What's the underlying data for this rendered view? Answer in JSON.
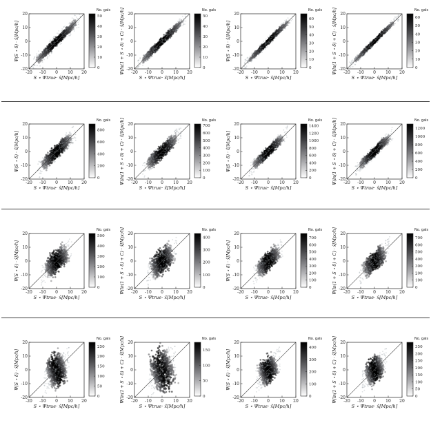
{
  "figure": {
    "colorbar_title": "No. gals",
    "xlabel_html": "S ⋆ Ψ<sub>true</sub>· x̂[Mpc/h]",
    "tick_values": [
      -20,
      -10,
      0,
      10,
      20
    ]
  },
  "chart_data": [
    {
      "type": "heatmap",
      "row": 1,
      "col": 1,
      "ylabel": "Ψ(S ⋆ δ) · x̂[Mpc/h]",
      "xlabel": "S ⋆ Ψtrue· x̂[Mpc/h]",
      "xlim": [
        -20,
        20
      ],
      "ylim": [
        -20,
        20
      ],
      "colorbar_title": "No. gals",
      "colorbar_ticks": [
        0,
        10,
        20,
        30,
        40,
        50
      ],
      "colorbar_max": 52,
      "spread": 0.9,
      "extent": 15,
      "halo": 2.4
    },
    {
      "type": "heatmap",
      "row": 1,
      "col": 2,
      "ylabel": "Ψ(ln(1 + S ⋆ δ) + C) · x̂[Mpc/h]",
      "xlabel": "S ⋆ Ψtrue· x̂[Mpc/h]",
      "xlim": [
        -20,
        20
      ],
      "ylim": [
        -20,
        20
      ],
      "colorbar_title": "No. gals",
      "colorbar_ticks": [
        0,
        10,
        20,
        30,
        40,
        50
      ],
      "colorbar_max": 52,
      "spread": 0.85,
      "extent": 15,
      "halo": 1.6
    },
    {
      "type": "heatmap",
      "row": 1,
      "col": 3,
      "ylabel": "Ψ(S ⋆ δ) · x̂[Mpc/h]",
      "xlabel": "S ⋆ Ψtrue· x̂[Mpc/h]",
      "xlim": [
        -20,
        20
      ],
      "ylim": [
        -20,
        20
      ],
      "colorbar_title": "No. gals",
      "colorbar_ticks": [
        0,
        10,
        20,
        30,
        40,
        50,
        60
      ],
      "colorbar_max": 66,
      "spread": 0.6,
      "extent": 15,
      "halo": 1.4
    },
    {
      "type": "heatmap",
      "row": 1,
      "col": 4,
      "ylabel": "Ψ(ln(1 + S ⋆ δ) + C) · x̂[Mpc/h]",
      "xlabel": "S ⋆ Ψtrue· x̂[Mpc/h]",
      "xlim": [
        -20,
        20
      ],
      "ylim": [
        -20,
        20
      ],
      "colorbar_title": "No. gals",
      "colorbar_ticks": [
        0,
        10,
        20,
        30,
        40,
        50,
        60
      ],
      "colorbar_max": 64,
      "spread": 0.5,
      "extent": 15,
      "halo": 1.2
    },
    {
      "type": "heatmap",
      "row": 2,
      "col": 1,
      "ylabel": "Ψ(S ⋆ δ) · x̂[Mpc/h]",
      "xlabel": "S ⋆ Ψtrue· x̂[Mpc/h]",
      "xlim": [
        -20,
        20
      ],
      "ylim": [
        -20,
        20
      ],
      "colorbar_title": "No. gals",
      "colorbar_ticks": [
        0,
        200,
        400,
        600,
        800
      ],
      "colorbar_max": 900,
      "spread": 1.5,
      "extent": 11,
      "halo": 2.6
    },
    {
      "type": "heatmap",
      "row": 2,
      "col": 2,
      "ylabel": "Ψ(ln(1 + S ⋆ δ) + C) · x̂[Mpc/h]",
      "xlabel": "S ⋆ Ψtrue· x̂[Mpc/h]",
      "xlim": [
        -20,
        20
      ],
      "ylim": [
        -20,
        20
      ],
      "colorbar_title": "No. gals",
      "colorbar_ticks": [
        0,
        100,
        200,
        300,
        400,
        500,
        600,
        700
      ],
      "colorbar_max": 720,
      "spread": 1.5,
      "extent": 11,
      "halo": 2.4
    },
    {
      "type": "heatmap",
      "row": 2,
      "col": 3,
      "ylabel": "Ψ(S ⋆ δ) · x̂[Mpc/h]",
      "xlabel": "S ⋆ Ψtrue· x̂[Mpc/h]",
      "xlim": [
        -20,
        20
      ],
      "ylim": [
        -20,
        20
      ],
      "colorbar_title": "No. gals",
      "colorbar_ticks": [
        0,
        200,
        400,
        600,
        800,
        1000,
        1200,
        1400
      ],
      "colorbar_max": 1450,
      "spread": 1.1,
      "extent": 11,
      "halo": 2.0
    },
    {
      "type": "heatmap",
      "row": 2,
      "col": 4,
      "ylabel": "Ψ(ln(1 + S ⋆ δ) + C) · x̂[Mpc/h]",
      "xlabel": "S ⋆ Ψtrue· x̂[Mpc/h]",
      "xlim": [
        -20,
        20
      ],
      "ylim": [
        -20,
        20
      ],
      "colorbar_title": "No. gals",
      "colorbar_ticks": [
        0,
        200,
        400,
        600,
        800,
        1000,
        1200
      ],
      "colorbar_max": 1300,
      "spread": 1.0,
      "extent": 11,
      "halo": 2.0
    },
    {
      "type": "heatmap",
      "row": 3,
      "col": 1,
      "ylabel": "Ψ(S ⋆ δ) · x̂[Mpc/h]",
      "xlabel": "S ⋆ Ψtrue· x̂[Mpc/h]",
      "xlim": [
        -20,
        20
      ],
      "ylim": [
        -20,
        20
      ],
      "colorbar_title": "No. gals",
      "colorbar_ticks": [
        0,
        100,
        200,
        300,
        400,
        500
      ],
      "colorbar_max": 520,
      "spread": 2.6,
      "extent": 8,
      "halo": 3.0
    },
    {
      "type": "heatmap",
      "row": 3,
      "col": 2,
      "ylabel": "Ψ(ln(1 + S ⋆ δ) + C) · x̂[Mpc/h]",
      "xlabel": "S ⋆ Ψtrue· x̂[Mpc/h]",
      "xlim": [
        -20,
        20
      ],
      "ylim": [
        -20,
        20
      ],
      "colorbar_title": "No. gals",
      "colorbar_ticks": [
        0,
        100,
        200,
        300,
        400
      ],
      "colorbar_max": 430,
      "spread": 2.8,
      "extent": 8,
      "halo": 3.2
    },
    {
      "type": "heatmap",
      "row": 3,
      "col": 3,
      "ylabel": "Ψ(S ⋆ δ) · x̂[Mpc/h]",
      "xlabel": "S ⋆ Ψtrue· x̂[Mpc/h]",
      "xlim": [
        -20,
        20
      ],
      "ylim": [
        -20,
        20
      ],
      "colorbar_title": "No. gals",
      "colorbar_ticks": [
        0,
        100,
        200,
        300,
        400,
        500,
        600,
        700
      ],
      "colorbar_max": 760,
      "spread": 2.0,
      "extent": 8,
      "halo": 2.8
    },
    {
      "type": "heatmap",
      "row": 3,
      "col": 4,
      "ylabel": "Ψ(ln(1 + S ⋆ δ) + C) · x̂[Mpc/h]",
      "xlabel": "S ⋆ Ψtrue· x̂[Mpc/h]",
      "xlim": [
        -20,
        20
      ],
      "ylim": [
        -20,
        20
      ],
      "colorbar_title": "No. gals",
      "colorbar_ticks": [
        0,
        100,
        200,
        300,
        400,
        500,
        600,
        700
      ],
      "colorbar_max": 760,
      "spread": 2.1,
      "extent": 8,
      "halo": 2.8
    },
    {
      "type": "heatmap",
      "row": 4,
      "col": 1,
      "ylabel": "Ψ(S ⋆ δ) · x̂[Mpc/h]",
      "xlabel": "S ⋆ Ψtrue· x̂[Mpc/h]",
      "xlim": [
        -20,
        20
      ],
      "ylim": [
        -20,
        20
      ],
      "colorbar_title": "No. gals",
      "colorbar_ticks": [
        0,
        50,
        100,
        150,
        200,
        250
      ],
      "colorbar_max": 270,
      "spread": 4.0,
      "extent": 6,
      "halo": 4.0
    },
    {
      "type": "heatmap",
      "row": 4,
      "col": 2,
      "ylabel": "Ψ(ln(1 + S ⋆ δ) + C) · x̂[Mpc/h]",
      "xlabel": "S ⋆ Ψtrue· x̂[Mpc/h]",
      "xlim": [
        -20,
        20
      ],
      "ylim": [
        -20,
        20
      ],
      "colorbar_title": "No. gals",
      "colorbar_ticks": [
        0,
        50,
        100,
        150
      ],
      "colorbar_max": 175,
      "spread": 5.5,
      "extent": 7,
      "halo": 5.0
    },
    {
      "type": "heatmap",
      "row": 4,
      "col": 3,
      "ylabel": "Ψ(S ⋆ δ) · x̂[Mpc/h]",
      "xlabel": "S ⋆ Ψtrue· x̂[Mpc/h]",
      "xlim": [
        -20,
        20
      ],
      "ylim": [
        -20,
        20
      ],
      "colorbar_title": "No. gals",
      "colorbar_ticks": [
        0,
        100,
        200,
        300,
        400
      ],
      "colorbar_max": 440,
      "spread": 3.0,
      "extent": 6,
      "halo": 3.4
    },
    {
      "type": "heatmap",
      "row": 4,
      "col": 4,
      "ylabel": "Ψ(ln(1 + S ⋆ δ) + C) · x̂[Mpc/h]",
      "xlabel": "S ⋆ Ψtrue· x̂[Mpc/h]",
      "xlim": [
        -20,
        20
      ],
      "ylim": [
        -20,
        20
      ],
      "colorbar_title": "No. gals",
      "colorbar_ticks": [
        0,
        50,
        100,
        150,
        200,
        250,
        300,
        350
      ],
      "colorbar_max": 380,
      "spread": 3.0,
      "extent": 6,
      "halo": 3.4
    }
  ]
}
